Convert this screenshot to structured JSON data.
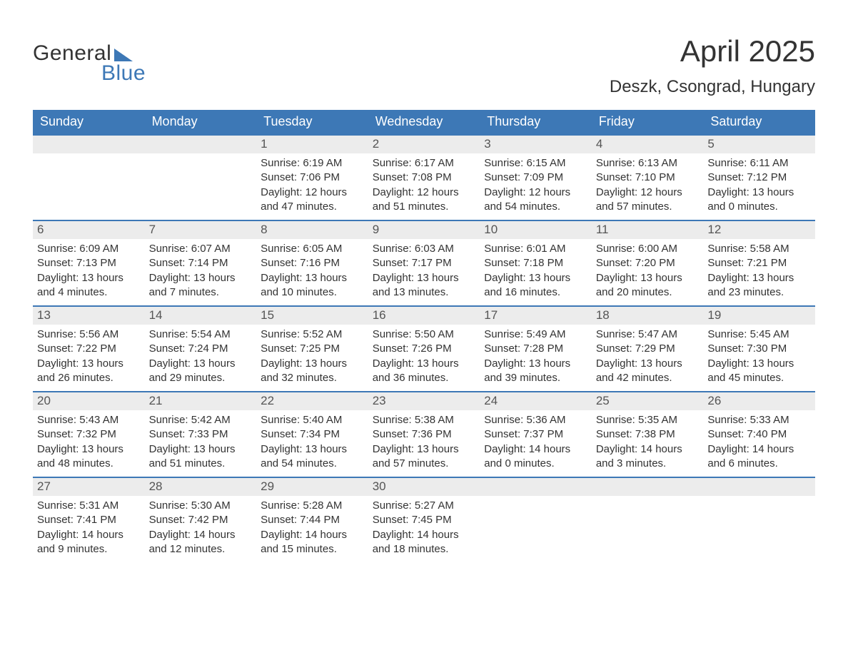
{
  "logo": {
    "word1": "General",
    "word2": "Blue"
  },
  "title": "April 2025",
  "subtitle": "Deszk, Csongrad, Hungary",
  "colors": {
    "accent": "#3d78b6",
    "header_text": "#ffffff",
    "daynum_bg": "#ececec",
    "text": "#333333",
    "background": "#ffffff"
  },
  "fonts": {
    "title_size": 42,
    "subtitle_size": 24,
    "header_size": 18,
    "daynum_size": 17,
    "body_size": 15
  },
  "columns": [
    "Sunday",
    "Monday",
    "Tuesday",
    "Wednesday",
    "Thursday",
    "Friday",
    "Saturday"
  ],
  "weeks": [
    [
      {
        "empty": true
      },
      {
        "empty": true
      },
      {
        "n": "1",
        "sunrise": "Sunrise: 6:19 AM",
        "sunset": "Sunset: 7:06 PM",
        "daylight": "Daylight: 12 hours and 47 minutes."
      },
      {
        "n": "2",
        "sunrise": "Sunrise: 6:17 AM",
        "sunset": "Sunset: 7:08 PM",
        "daylight": "Daylight: 12 hours and 51 minutes."
      },
      {
        "n": "3",
        "sunrise": "Sunrise: 6:15 AM",
        "sunset": "Sunset: 7:09 PM",
        "daylight": "Daylight: 12 hours and 54 minutes."
      },
      {
        "n": "4",
        "sunrise": "Sunrise: 6:13 AM",
        "sunset": "Sunset: 7:10 PM",
        "daylight": "Daylight: 12 hours and 57 minutes."
      },
      {
        "n": "5",
        "sunrise": "Sunrise: 6:11 AM",
        "sunset": "Sunset: 7:12 PM",
        "daylight": "Daylight: 13 hours and 0 minutes."
      }
    ],
    [
      {
        "n": "6",
        "sunrise": "Sunrise: 6:09 AM",
        "sunset": "Sunset: 7:13 PM",
        "daylight": "Daylight: 13 hours and 4 minutes."
      },
      {
        "n": "7",
        "sunrise": "Sunrise: 6:07 AM",
        "sunset": "Sunset: 7:14 PM",
        "daylight": "Daylight: 13 hours and 7 minutes."
      },
      {
        "n": "8",
        "sunrise": "Sunrise: 6:05 AM",
        "sunset": "Sunset: 7:16 PM",
        "daylight": "Daylight: 13 hours and 10 minutes."
      },
      {
        "n": "9",
        "sunrise": "Sunrise: 6:03 AM",
        "sunset": "Sunset: 7:17 PM",
        "daylight": "Daylight: 13 hours and 13 minutes."
      },
      {
        "n": "10",
        "sunrise": "Sunrise: 6:01 AM",
        "sunset": "Sunset: 7:18 PM",
        "daylight": "Daylight: 13 hours and 16 minutes."
      },
      {
        "n": "11",
        "sunrise": "Sunrise: 6:00 AM",
        "sunset": "Sunset: 7:20 PM",
        "daylight": "Daylight: 13 hours and 20 minutes."
      },
      {
        "n": "12",
        "sunrise": "Sunrise: 5:58 AM",
        "sunset": "Sunset: 7:21 PM",
        "daylight": "Daylight: 13 hours and 23 minutes."
      }
    ],
    [
      {
        "n": "13",
        "sunrise": "Sunrise: 5:56 AM",
        "sunset": "Sunset: 7:22 PM",
        "daylight": "Daylight: 13 hours and 26 minutes."
      },
      {
        "n": "14",
        "sunrise": "Sunrise: 5:54 AM",
        "sunset": "Sunset: 7:24 PM",
        "daylight": "Daylight: 13 hours and 29 minutes."
      },
      {
        "n": "15",
        "sunrise": "Sunrise: 5:52 AM",
        "sunset": "Sunset: 7:25 PM",
        "daylight": "Daylight: 13 hours and 32 minutes."
      },
      {
        "n": "16",
        "sunrise": "Sunrise: 5:50 AM",
        "sunset": "Sunset: 7:26 PM",
        "daylight": "Daylight: 13 hours and 36 minutes."
      },
      {
        "n": "17",
        "sunrise": "Sunrise: 5:49 AM",
        "sunset": "Sunset: 7:28 PM",
        "daylight": "Daylight: 13 hours and 39 minutes."
      },
      {
        "n": "18",
        "sunrise": "Sunrise: 5:47 AM",
        "sunset": "Sunset: 7:29 PM",
        "daylight": "Daylight: 13 hours and 42 minutes."
      },
      {
        "n": "19",
        "sunrise": "Sunrise: 5:45 AM",
        "sunset": "Sunset: 7:30 PM",
        "daylight": "Daylight: 13 hours and 45 minutes."
      }
    ],
    [
      {
        "n": "20",
        "sunrise": "Sunrise: 5:43 AM",
        "sunset": "Sunset: 7:32 PM",
        "daylight": "Daylight: 13 hours and 48 minutes."
      },
      {
        "n": "21",
        "sunrise": "Sunrise: 5:42 AM",
        "sunset": "Sunset: 7:33 PM",
        "daylight": "Daylight: 13 hours and 51 minutes."
      },
      {
        "n": "22",
        "sunrise": "Sunrise: 5:40 AM",
        "sunset": "Sunset: 7:34 PM",
        "daylight": "Daylight: 13 hours and 54 minutes."
      },
      {
        "n": "23",
        "sunrise": "Sunrise: 5:38 AM",
        "sunset": "Sunset: 7:36 PM",
        "daylight": "Daylight: 13 hours and 57 minutes."
      },
      {
        "n": "24",
        "sunrise": "Sunrise: 5:36 AM",
        "sunset": "Sunset: 7:37 PM",
        "daylight": "Daylight: 14 hours and 0 minutes."
      },
      {
        "n": "25",
        "sunrise": "Sunrise: 5:35 AM",
        "sunset": "Sunset: 7:38 PM",
        "daylight": "Daylight: 14 hours and 3 minutes."
      },
      {
        "n": "26",
        "sunrise": "Sunrise: 5:33 AM",
        "sunset": "Sunset: 7:40 PM",
        "daylight": "Daylight: 14 hours and 6 minutes."
      }
    ],
    [
      {
        "n": "27",
        "sunrise": "Sunrise: 5:31 AM",
        "sunset": "Sunset: 7:41 PM",
        "daylight": "Daylight: 14 hours and 9 minutes."
      },
      {
        "n": "28",
        "sunrise": "Sunrise: 5:30 AM",
        "sunset": "Sunset: 7:42 PM",
        "daylight": "Daylight: 14 hours and 12 minutes."
      },
      {
        "n": "29",
        "sunrise": "Sunrise: 5:28 AM",
        "sunset": "Sunset: 7:44 PM",
        "daylight": "Daylight: 14 hours and 15 minutes."
      },
      {
        "n": "30",
        "sunrise": "Sunrise: 5:27 AM",
        "sunset": "Sunset: 7:45 PM",
        "daylight": "Daylight: 14 hours and 18 minutes."
      },
      {
        "empty": true
      },
      {
        "empty": true
      },
      {
        "empty": true
      }
    ]
  ]
}
